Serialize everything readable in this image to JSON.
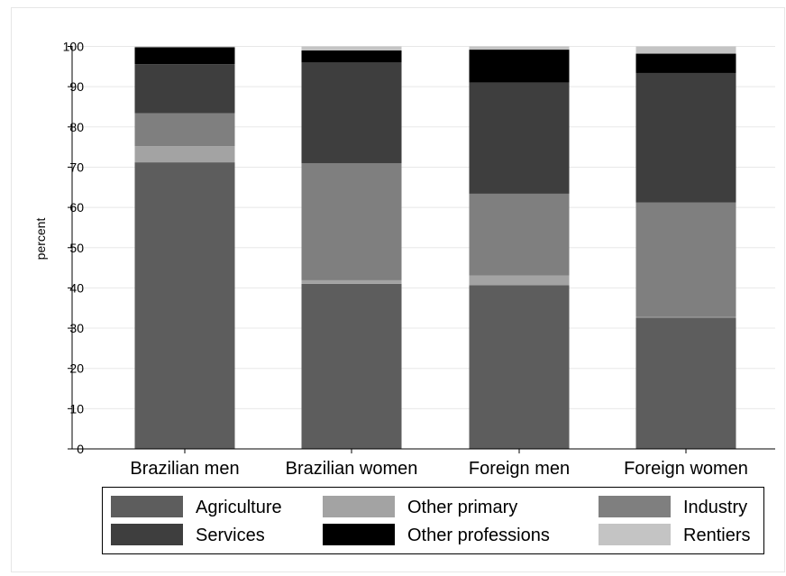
{
  "chart_data": {
    "type": "bar",
    "stacked": true,
    "orientation": "vertical",
    "categories": [
      "Brazilian men",
      "Brazilian women",
      "Foreign men",
      "Foreign women"
    ],
    "ylabel": "percent",
    "ylim": [
      0,
      100
    ],
    "yticks": [
      "0",
      "10",
      "20",
      "30",
      "40",
      "50",
      "60",
      "70",
      "80",
      "90",
      "100"
    ],
    "grid": true,
    "legend_position": "bottom",
    "series": [
      {
        "name": "Agriculture",
        "color": "#5d5d5d",
        "values": [
          71.2,
          41.0,
          40.7,
          32.6
        ]
      },
      {
        "name": "Other primary",
        "color": "#a3a3a3",
        "values": [
          4.0,
          0.9,
          2.4,
          0.2
        ]
      },
      {
        "name": "Industry",
        "color": "#7f7f7f",
        "values": [
          8.2,
          29.1,
          20.3,
          28.4
        ]
      },
      {
        "name": "Services",
        "color": "#3e3e3e",
        "values": [
          12.2,
          25.0,
          27.6,
          32.2
        ]
      },
      {
        "name": "Other professions",
        "color": "#000000",
        "values": [
          4.2,
          3.0,
          8.2,
          4.8
        ]
      },
      {
        "name": "Rentiers",
        "color": "#c4c4c4",
        "values": [
          0.2,
          1.0,
          0.8,
          1.8
        ]
      }
    ]
  }
}
